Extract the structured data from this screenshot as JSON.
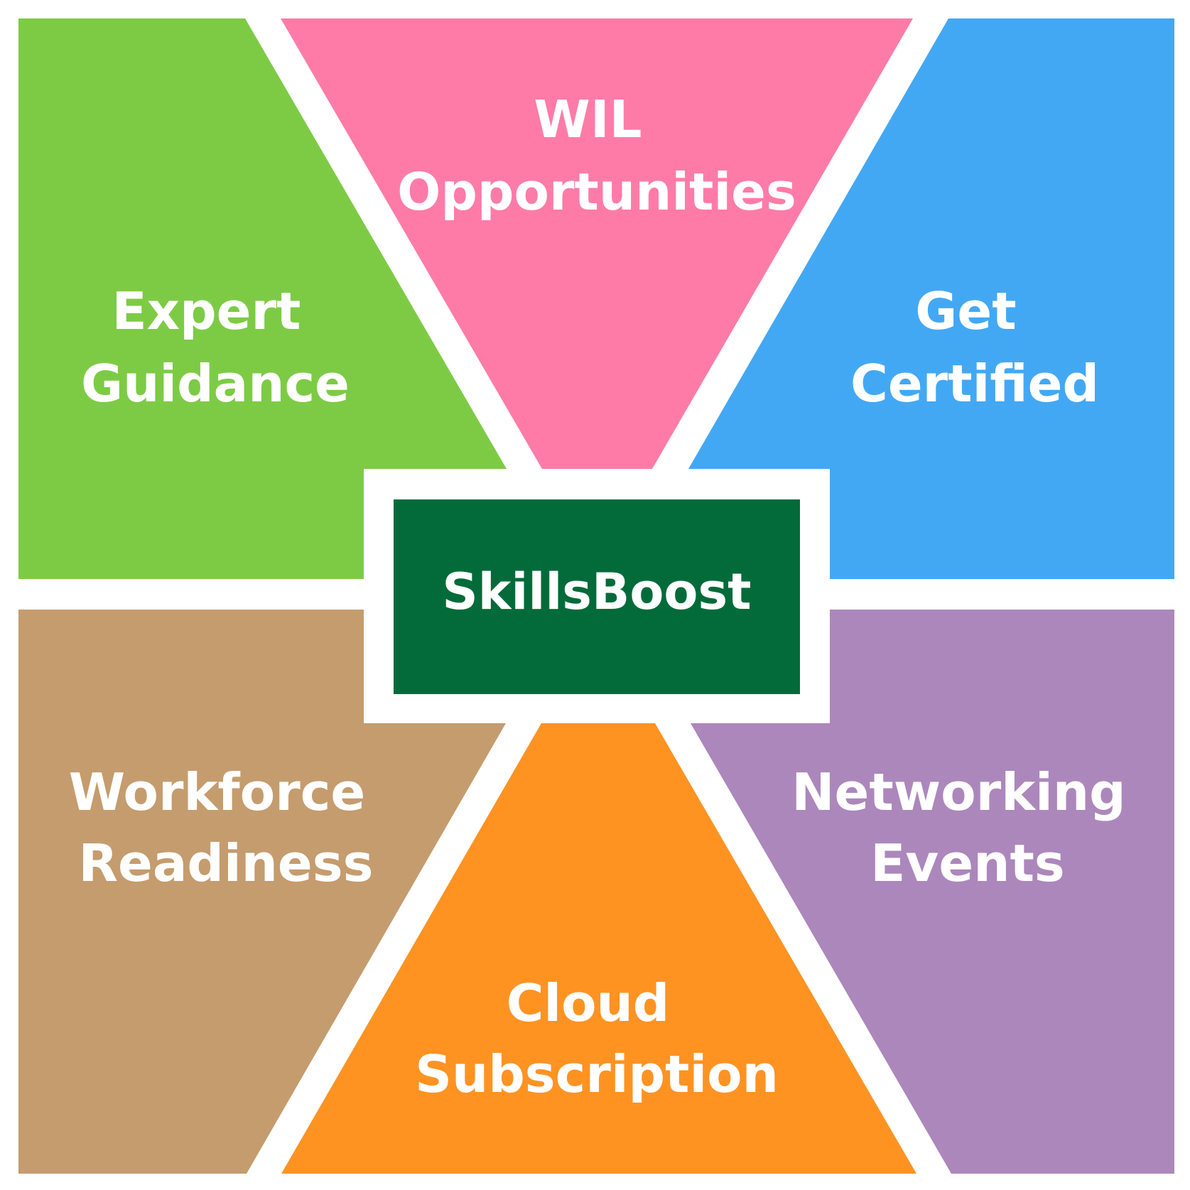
{
  "center": {
    "label": "SkillsBoost",
    "color": "#026b39"
  },
  "segments": [
    {
      "id": "expert-guidance",
      "line1": "Expert",
      "line2": "Guidance",
      "color": "#7dcb45"
    },
    {
      "id": "wil-opportunities",
      "line1": "WIL",
      "line2": "Opportunities",
      "color": "#fe7ba8"
    },
    {
      "id": "get-certified",
      "line1": "Get",
      "line2": "Certified",
      "color": "#43a8f3"
    },
    {
      "id": "workforce-readiness",
      "line1": "Workforce",
      "line2": "Readiness",
      "color": "#c59c6e"
    },
    {
      "id": "cloud-subscription",
      "line1": "Cloud",
      "line2": "Subscription",
      "color": "#fe9322"
    },
    {
      "id": "networking-events",
      "line1": "Networking",
      "line2": "Events",
      "color": "#ac87bc"
    }
  ]
}
